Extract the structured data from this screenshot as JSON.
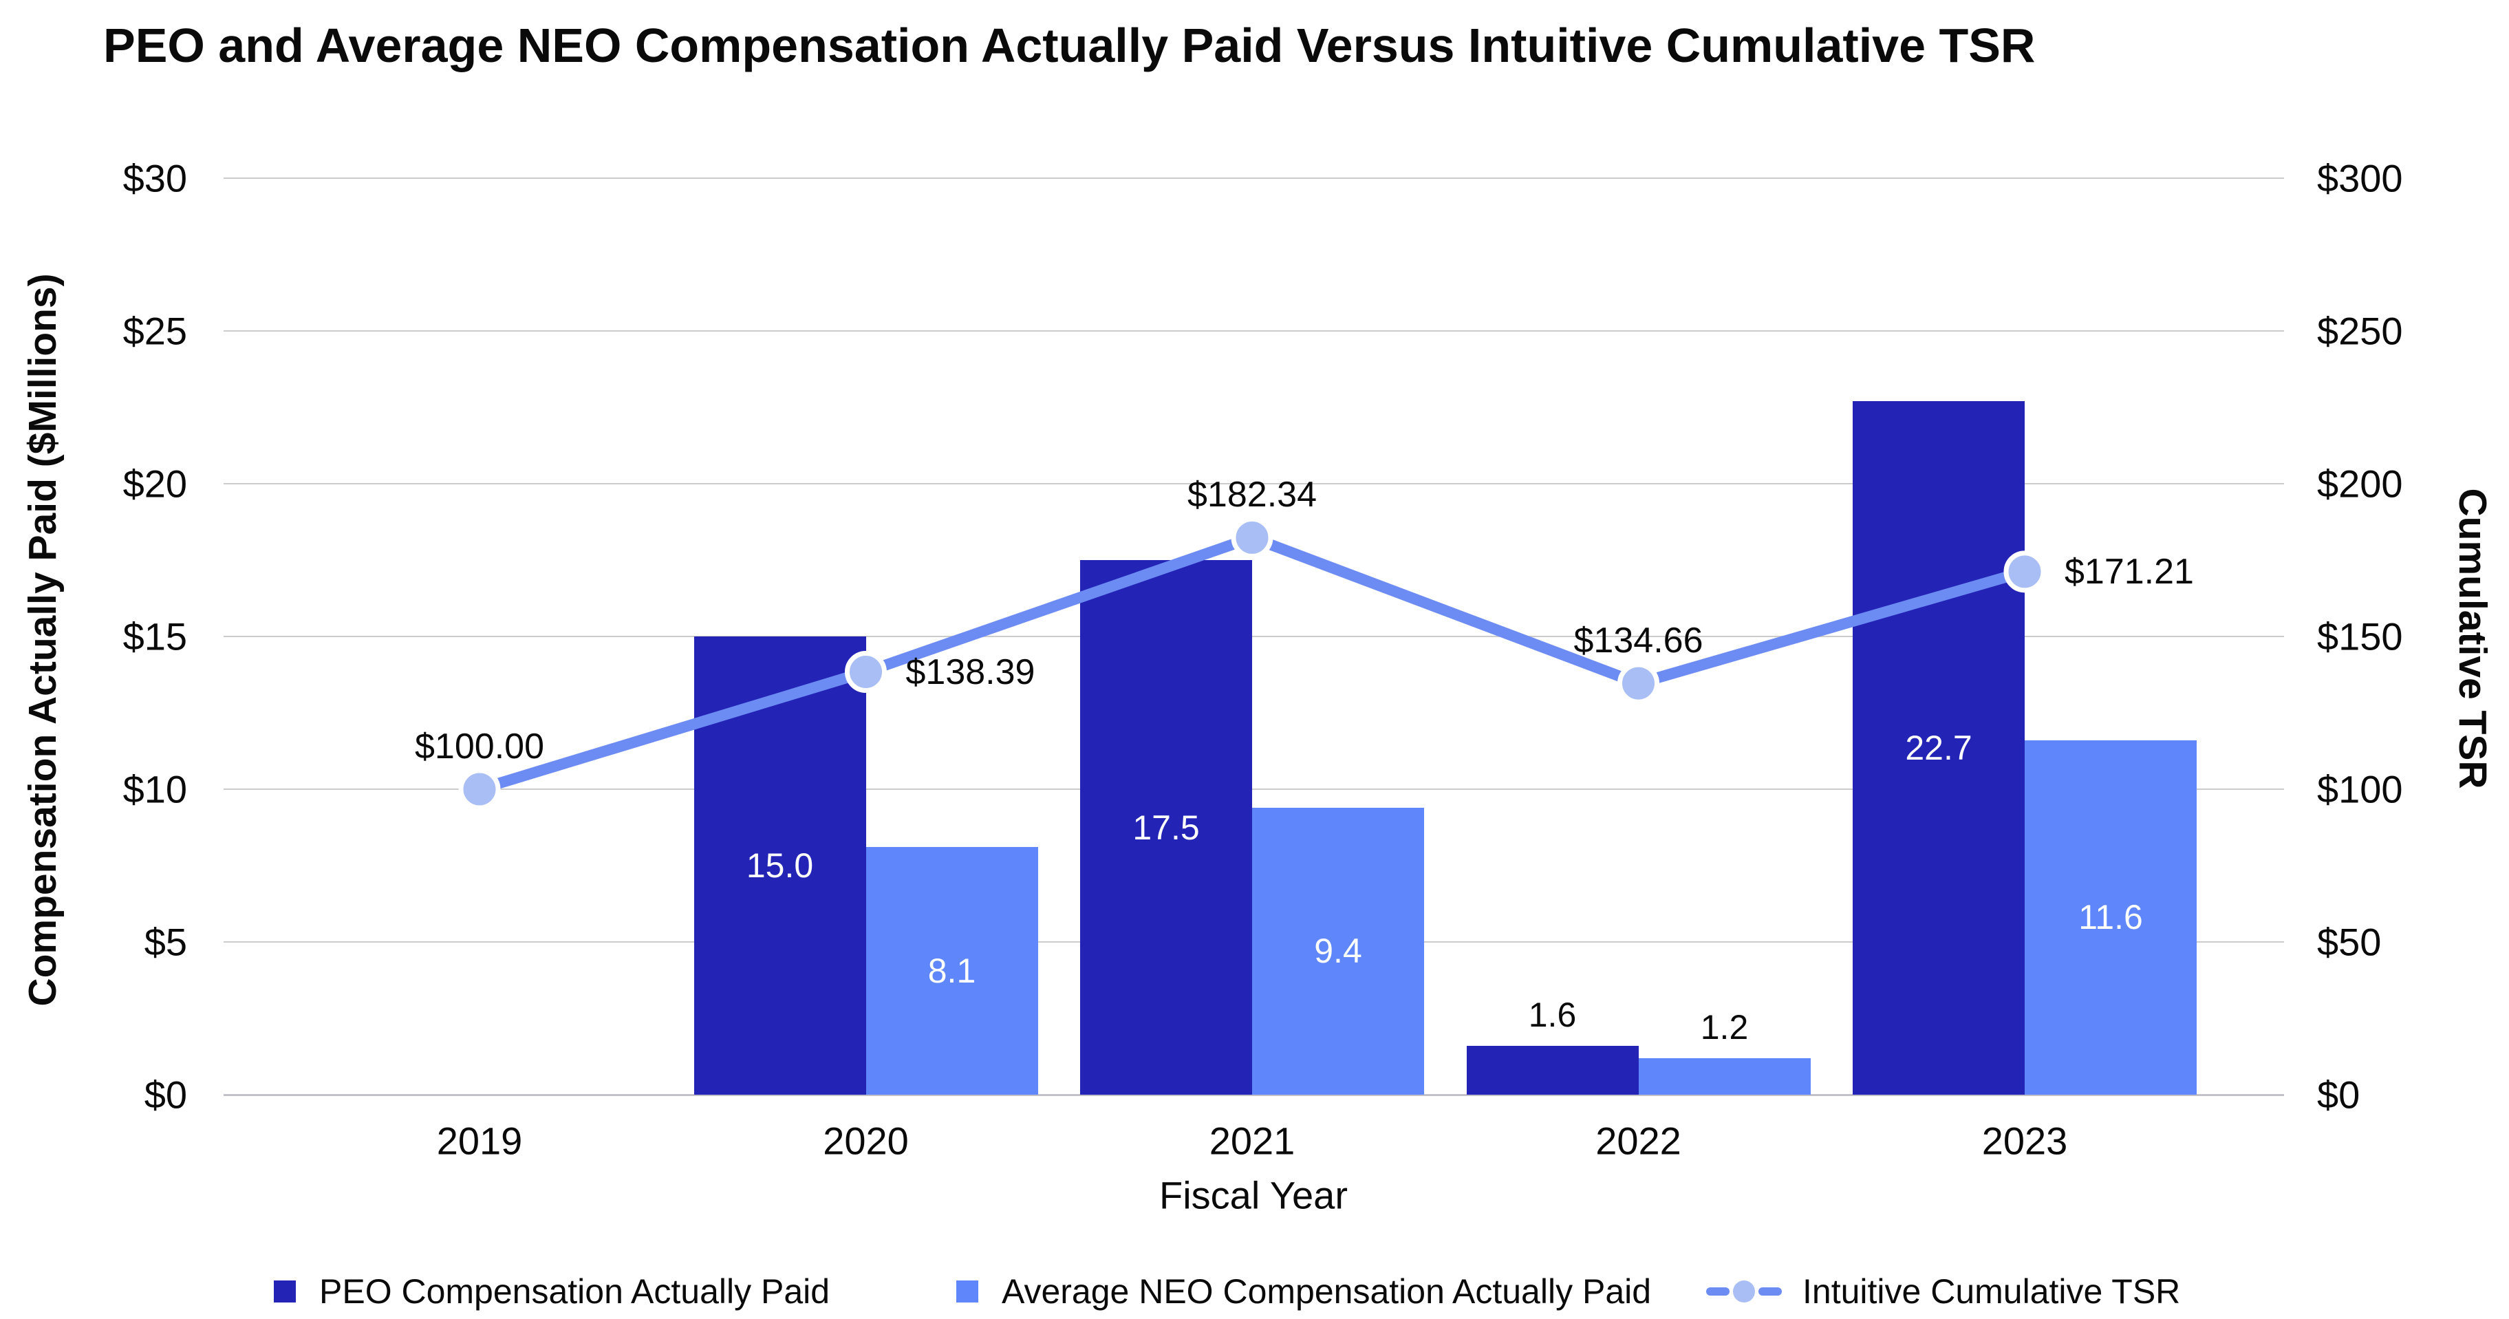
{
  "title": "PEO and Average NEO Compensation Actually Paid Versus Intuitive Cumulative TSR",
  "colors": {
    "peo_bar": "#2324b6",
    "neo_bar": "#5f87fb",
    "tsr_line": "#6d8cf3",
    "tsr_marker": "#a9bef5",
    "gridline": "#cccccc",
    "axis_line": "#c2c2c8",
    "text": "#0a0a0a",
    "bar_label_inside": "#ffffff"
  },
  "chart_data": {
    "type": "bar",
    "subtype": "grouped-bar-with-line-overlay",
    "title": "PEO and Average NEO Compensation Actually Paid Versus Intuitive Cumulative TSR",
    "xlabel": "Fiscal Year",
    "ylabel_left": "Compensation Actually Paid ($Millions)",
    "ylabel_right": "Cumulative TSR",
    "categories": [
      "2019",
      "2020",
      "2021",
      "2022",
      "2023"
    ],
    "series": [
      {
        "name": "PEO Compensation Actually Paid",
        "type": "bar",
        "axis": "left",
        "color": "#2324b6",
        "values": [
          null,
          15.0,
          17.5,
          1.6,
          22.7
        ],
        "labels": [
          "",
          "15.0",
          "17.5",
          "1.6",
          "22.7"
        ]
      },
      {
        "name": "Average NEO Compensation Actually Paid",
        "type": "bar",
        "axis": "left",
        "color": "#5f87fb",
        "values": [
          null,
          8.1,
          9.4,
          1.2,
          11.6
        ],
        "labels": [
          "",
          "8.1",
          "9.4",
          "1.2",
          "11.6"
        ]
      },
      {
        "name": "Intuitive Cumulative TSR",
        "type": "line",
        "axis": "right",
        "color": "#6d8cf3",
        "marker_color": "#a9bef5",
        "values": [
          100.0,
          138.39,
          182.34,
          134.66,
          171.21
        ],
        "labels": [
          "$100.00",
          "$138.39",
          "$182.34",
          "$134.66",
          "$171.21"
        ]
      }
    ],
    "y_left_ticks": [
      {
        "value": 0,
        "label": "$0"
      },
      {
        "value": 5,
        "label": "$5"
      },
      {
        "value": 10,
        "label": "$10"
      },
      {
        "value": 15,
        "label": "$15"
      },
      {
        "value": 20,
        "label": "$20"
      },
      {
        "value": 25,
        "label": "$25"
      },
      {
        "value": 30,
        "label": "$30"
      }
    ],
    "y_right_ticks": [
      {
        "value": 0,
        "label": "$0"
      },
      {
        "value": 50,
        "label": "$50"
      },
      {
        "value": 100,
        "label": "$100"
      },
      {
        "value": 150,
        "label": "$150"
      },
      {
        "value": 200,
        "label": "$200"
      },
      {
        "value": 250,
        "label": "$250"
      },
      {
        "value": 300,
        "label": "$300"
      }
    ],
    "ylim_left": [
      0,
      30
    ],
    "ylim_right": [
      0,
      300
    ],
    "grid": true,
    "legend_position": "bottom"
  }
}
